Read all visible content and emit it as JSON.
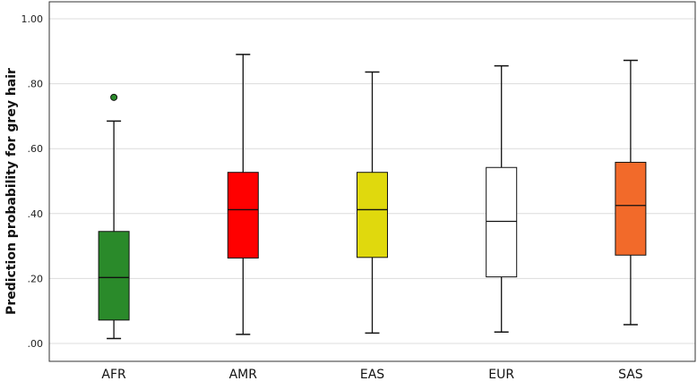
{
  "chart_data": {
    "type": "boxplot",
    "ylabel": "Prediction probability for grey hair",
    "xlabel": "",
    "ylim": [
      0,
      1
    ],
    "y_ticks": [
      ".00",
      ".20",
      ".40",
      ".60",
      ".80",
      "1.00"
    ],
    "y_tick_values": [
      0,
      0.2,
      0.4,
      0.6,
      0.8,
      1.0
    ],
    "grid": "horizontal",
    "categories": [
      "AFR",
      "AMR",
      "EAS",
      "EUR",
      "SAS"
    ],
    "boxes": [
      {
        "category": "AFR",
        "min": 0.015,
        "q1": 0.072,
        "median": 0.203,
        "q3": 0.345,
        "max": 0.685,
        "outliers": [
          0.758
        ],
        "color": "#2a8a2a"
      },
      {
        "category": "AMR",
        "min": 0.028,
        "q1": 0.263,
        "median": 0.412,
        "q3": 0.527,
        "max": 0.89,
        "outliers": [],
        "color": "#ff0000"
      },
      {
        "category": "EAS",
        "min": 0.032,
        "q1": 0.265,
        "median": 0.412,
        "q3": 0.527,
        "max": 0.836,
        "outliers": [],
        "color": "#e0d90d"
      },
      {
        "category": "EUR",
        "min": 0.035,
        "q1": 0.205,
        "median": 0.376,
        "q3": 0.542,
        "max": 0.855,
        "outliers": [],
        "color": "#ffffff"
      },
      {
        "category": "SAS",
        "min": 0.058,
        "q1": 0.272,
        "median": 0.425,
        "q3": 0.558,
        "max": 0.872,
        "outliers": [],
        "color": "#f26a2a"
      }
    ]
  }
}
